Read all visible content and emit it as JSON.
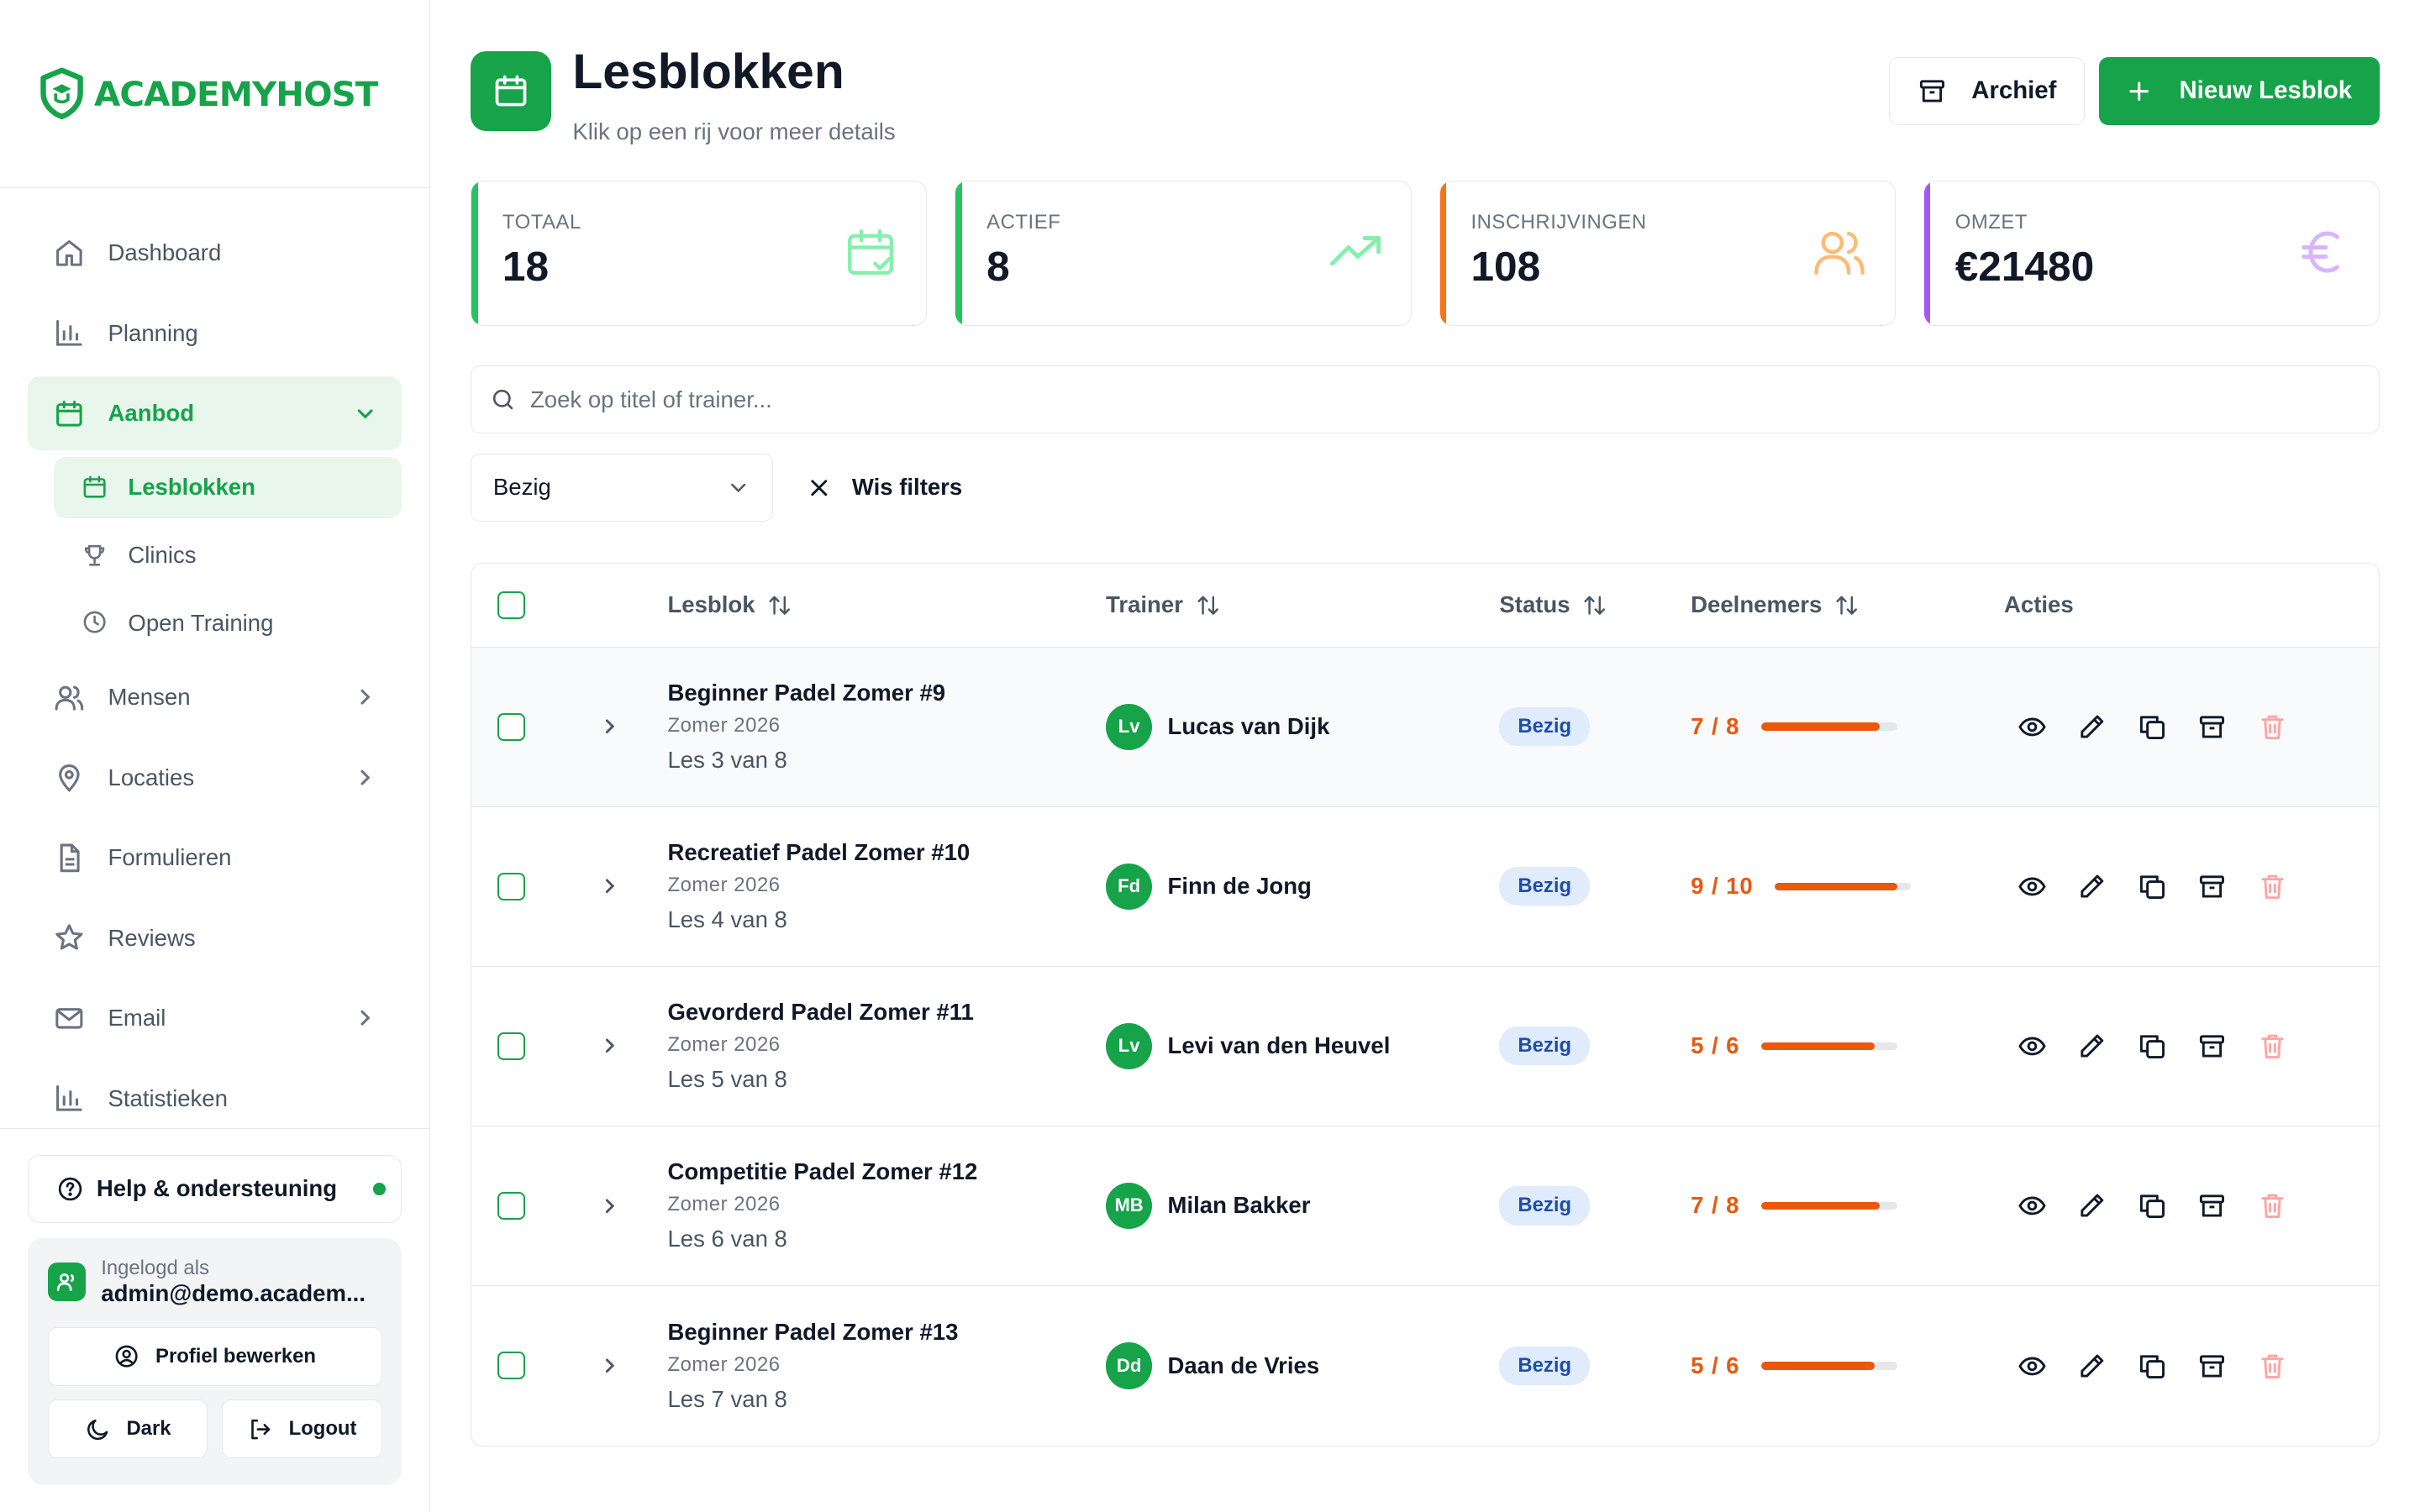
{
  "brand": {
    "name": "ACADEMYHOST"
  },
  "sidebar": {
    "items": [
      {
        "label": "Dashboard",
        "icon": "home-icon"
      },
      {
        "label": "Planning",
        "icon": "bar-chart-icon"
      },
      {
        "label": "Aanbod",
        "icon": "calendar-icon",
        "expanded": true,
        "children": [
          {
            "label": "Lesblokken",
            "icon": "calendar-icon",
            "active": true
          },
          {
            "label": "Clinics",
            "icon": "trophy-icon"
          },
          {
            "label": "Open Training",
            "icon": "clock-icon"
          }
        ]
      },
      {
        "label": "Mensen",
        "icon": "users-icon"
      },
      {
        "label": "Locaties",
        "icon": "map-pin-icon"
      },
      {
        "label": "Formulieren",
        "icon": "file-icon"
      },
      {
        "label": "Reviews",
        "icon": "star-icon"
      },
      {
        "label": "Email",
        "icon": "mail-icon"
      },
      {
        "label": "Statistieken",
        "icon": "bar-chart-icon"
      }
    ],
    "help_label": "Help & ondersteuning",
    "user": {
      "logged_in_label": "Ingelogd als",
      "email": "admin@demo.academ...",
      "edit_profile": "Profiel bewerken",
      "dark": "Dark",
      "logout": "Logout"
    }
  },
  "header": {
    "title": "Lesblokken",
    "subtitle": "Klik op een rij voor meer details",
    "archive_button": "Archief",
    "new_button": "Nieuw Lesblok"
  },
  "stats": [
    {
      "label": "TOTAAL",
      "value": "18",
      "color": "#22c55e"
    },
    {
      "label": "ACTIEF",
      "value": "8",
      "color": "#22c55e"
    },
    {
      "label": "INSCHRIJVINGEN",
      "value": "108",
      "color": "#f97316"
    },
    {
      "label": "OMZET",
      "value": "€21480",
      "color": "#a855f7"
    }
  ],
  "search": {
    "placeholder": "Zoek op titel of trainer..."
  },
  "filters": {
    "status_value": "Bezig",
    "clear_label": "Wis filters"
  },
  "table": {
    "columns": {
      "lesblok": "Lesblok",
      "trainer": "Trainer",
      "status": "Status",
      "deelnemers": "Deelnemers",
      "acties": "Acties"
    },
    "rows": [
      {
        "title": "Beginner Padel Zomer #9",
        "season": "Zomer 2026",
        "progress": "Les 3 van 8",
        "trainer_initials": "Lv",
        "trainer": "Lucas van Dijk",
        "status": "Bezig",
        "participants": "7 / 8",
        "fill": 0.875
      },
      {
        "title": "Recreatief Padel Zomer #10",
        "season": "Zomer 2026",
        "progress": "Les 4 van 8",
        "trainer_initials": "Fd",
        "trainer": "Finn de Jong",
        "status": "Bezig",
        "participants": "9 / 10",
        "fill": 0.9
      },
      {
        "title": "Gevorderd Padel Zomer #11",
        "season": "Zomer 2026",
        "progress": "Les 5 van 8",
        "trainer_initials": "Lv",
        "trainer": "Levi van den Heuvel",
        "status": "Bezig",
        "participants": "5 / 6",
        "fill": 0.833
      },
      {
        "title": "Competitie Padel Zomer #12",
        "season": "Zomer 2026",
        "progress": "Les 6 van 8",
        "trainer_initials": "MB",
        "trainer": "Milan Bakker",
        "status": "Bezig",
        "participants": "7 / 8",
        "fill": 0.875
      },
      {
        "title": "Beginner Padel Zomer #13",
        "season": "Zomer 2026",
        "progress": "Les 7 van 8",
        "trainer_initials": "Dd",
        "trainer": "Daan de Vries",
        "status": "Bezig",
        "participants": "5 / 6",
        "fill": 0.833
      }
    ]
  }
}
